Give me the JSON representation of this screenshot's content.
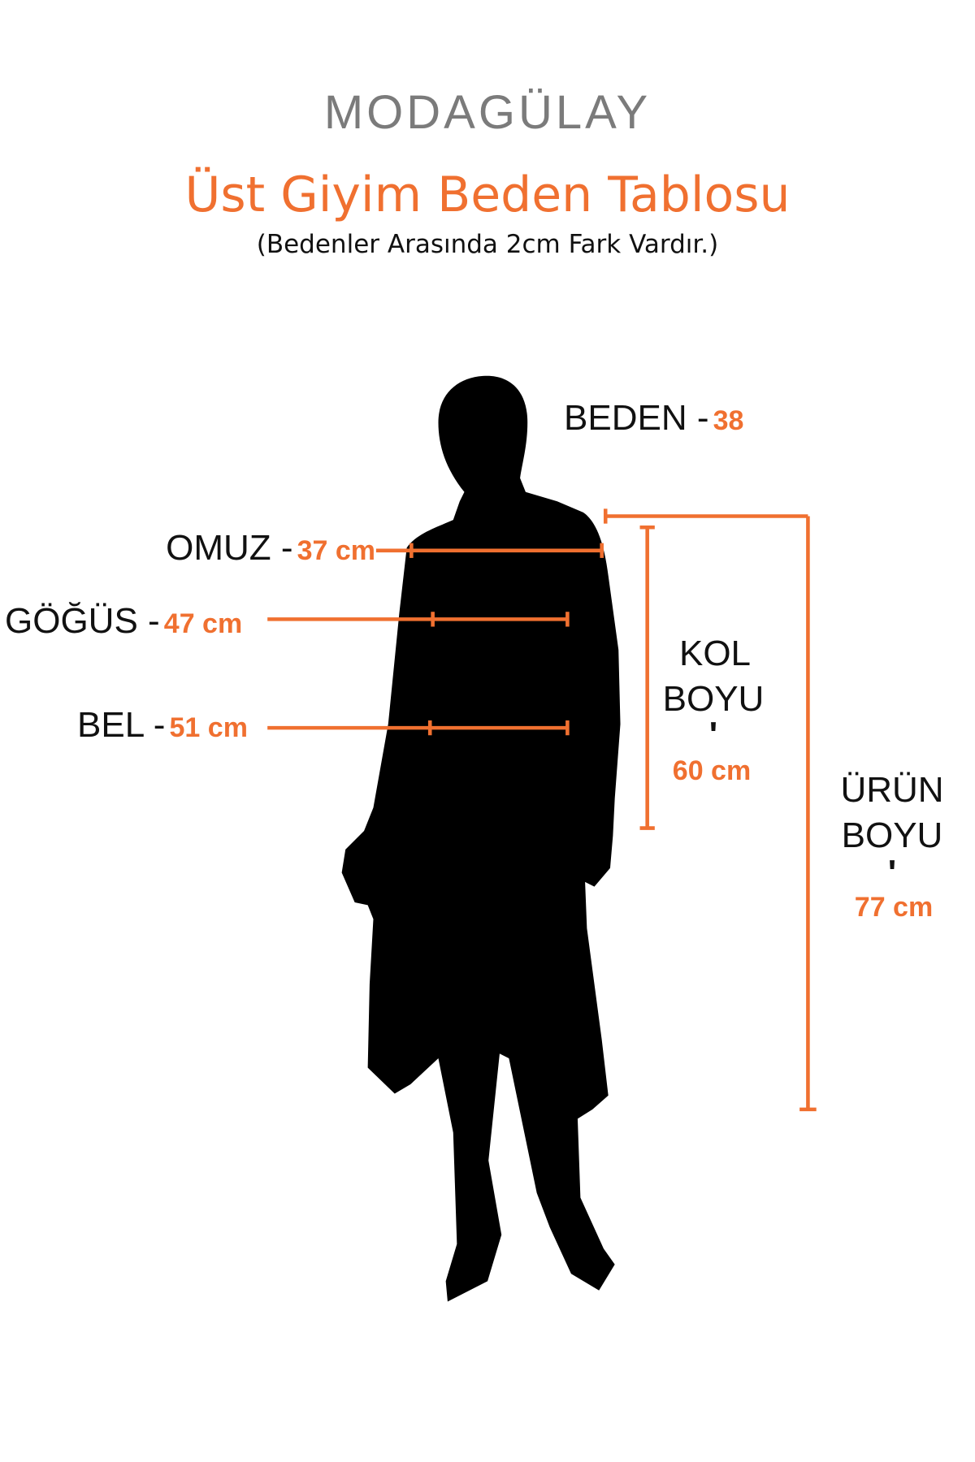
{
  "brand": {
    "logo_text": "MODAGÜLAY"
  },
  "header": {
    "title": "Üst Giyim Beden Tablosu",
    "subtitle": "(Bedenler Arasında 2cm Fark Vardır.)"
  },
  "size": {
    "label": "BEDEN -",
    "value": "38"
  },
  "measurements": {
    "shoulder": {
      "label": "OMUZ -",
      "value": "37 cm"
    },
    "chest": {
      "label": "GÖĞÜS -",
      "value": "47 cm"
    },
    "waist": {
      "label": "BEL -",
      "value": "51 cm"
    },
    "sleeve": {
      "label_line1": "KOL",
      "label_line2": "BOYU",
      "separator": "'",
      "value": "60 cm"
    },
    "length": {
      "label_line1": "ÜRÜN",
      "label_line2": "BOYU",
      "separator": "'",
      "value": "77 cm"
    }
  },
  "colors": {
    "accent": "#f07030",
    "logo": "#7b7b7b",
    "silhouette": "#000000"
  }
}
